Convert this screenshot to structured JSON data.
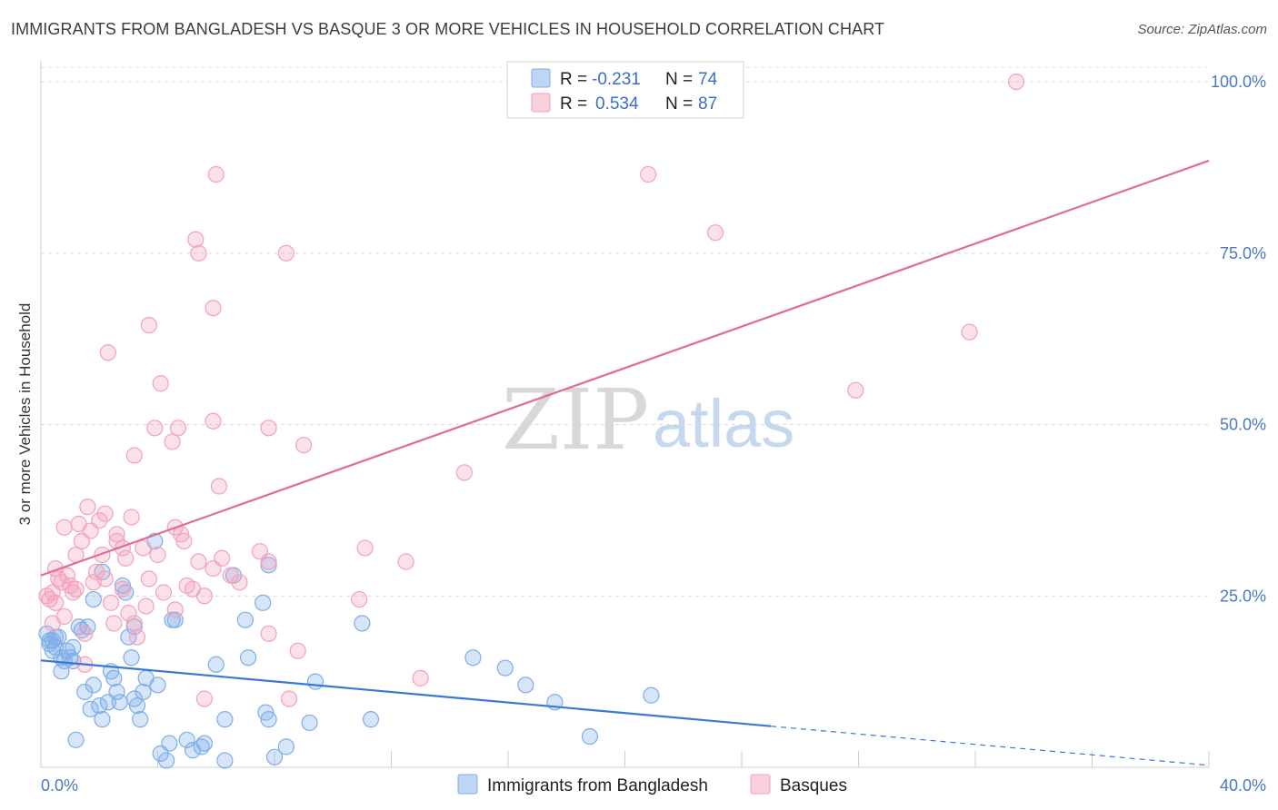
{
  "title": "IMMIGRANTS FROM BANGLADESH VS BASQUE 3 OR MORE VEHICLES IN HOUSEHOLD CORRELATION CHART",
  "source": "Source: ZipAtlas.com",
  "watermark": {
    "part1": "ZIP",
    "part2": "atlas"
  },
  "legend": {
    "r_label": "R =",
    "n_label": "N =",
    "rows": [
      {
        "r": "-0.231",
        "n": "74",
        "color": "#7eaee8"
      },
      {
        "r": "0.534",
        "n": "87",
        "color": "#f3a2bc"
      }
    ]
  },
  "bottom_legend": [
    {
      "label": "Immigrants from Bangladesh",
      "color": "#7eaee8"
    },
    {
      "label": "Basques",
      "color": "#f3a2bc"
    }
  ],
  "chart_data": {
    "type": "scatter",
    "title": "IMMIGRANTS FROM BANGLADESH VS BASQUE 3 OR MORE VEHICLES IN HOUSEHOLD CORRELATION CHART",
    "xlabel": "",
    "ylabel": "3 or more Vehicles in Household",
    "xlim": [
      0,
      40
    ],
    "ylim": [
      0,
      102
    ],
    "x_tick_labels": [
      "0.0%",
      "40.0%"
    ],
    "y_ticks": [
      25,
      50,
      75,
      100
    ],
    "y_tick_labels": [
      "25.0%",
      "50.0%",
      "75.0%",
      "100.0%"
    ],
    "grid": true,
    "legend_position": "top-center",
    "series": [
      {
        "name": "Immigrants from Bangladesh",
        "color": "#7eaee8",
        "line_color": "#3a78d4",
        "trend": {
          "x": [
            0,
            25
          ],
          "y": [
            15.6,
            6.0
          ]
        },
        "trend_extension": {
          "x": [
            25,
            40
          ],
          "y": [
            6.0,
            0.3
          ]
        },
        "points": [
          [
            0.2,
            19.5
          ],
          [
            0.3,
            18.0
          ],
          [
            0.4,
            18.5
          ],
          [
            0.5,
            17.5
          ],
          [
            0.6,
            19.0
          ],
          [
            0.4,
            17.0
          ],
          [
            0.7,
            16.0
          ],
          [
            0.8,
            15.5
          ],
          [
            0.9,
            17.0
          ],
          [
            1.0,
            16.0
          ],
          [
            0.7,
            14.0
          ],
          [
            1.1,
            15.5
          ],
          [
            1.3,
            20.5
          ],
          [
            1.4,
            20.0
          ],
          [
            1.6,
            20.5
          ],
          [
            1.8,
            24.5
          ],
          [
            2.1,
            28.5
          ],
          [
            2.8,
            26.5
          ],
          [
            2.9,
            25.5
          ],
          [
            3.0,
            19.0
          ],
          [
            3.2,
            20.5
          ],
          [
            3.9,
            33.0
          ],
          [
            4.5,
            21.5
          ],
          [
            4.6,
            21.5
          ],
          [
            6.6,
            28.0
          ],
          [
            7.0,
            21.5
          ],
          [
            7.6,
            24.0
          ],
          [
            7.8,
            29.5
          ],
          [
            1.5,
            11.0
          ],
          [
            1.8,
            12.0
          ],
          [
            2.4,
            14.0
          ],
          [
            2.6,
            11.0
          ],
          [
            3.1,
            16.0
          ],
          [
            3.5,
            11.0
          ],
          [
            3.6,
            13.0
          ],
          [
            4.0,
            12.0
          ],
          [
            2.0,
            9.0
          ],
          [
            2.3,
            9.5
          ],
          [
            2.7,
            9.5
          ],
          [
            3.2,
            10.0
          ],
          [
            1.2,
            4.0
          ],
          [
            2.1,
            7.0
          ],
          [
            3.4,
            7.0
          ],
          [
            4.4,
            3.5
          ],
          [
            5.0,
            4.0
          ],
          [
            5.6,
            3.5
          ],
          [
            6.3,
            7.0
          ],
          [
            7.7,
            8.0
          ],
          [
            7.8,
            7.0
          ],
          [
            9.2,
            6.5
          ],
          [
            11.3,
            7.0
          ],
          [
            9.4,
            12.5
          ],
          [
            11.0,
            21.0
          ],
          [
            6.0,
            15.0
          ],
          [
            7.1,
            16.0
          ],
          [
            14.8,
            16.0
          ],
          [
            15.9,
            14.5
          ],
          [
            16.6,
            12.0
          ],
          [
            17.6,
            9.5
          ],
          [
            18.8,
            4.5
          ],
          [
            20.9,
            10.5
          ],
          [
            5.2,
            2.5
          ],
          [
            5.5,
            3.0
          ],
          [
            6.3,
            1.0
          ],
          [
            8.0,
            1.5
          ],
          [
            8.4,
            3.0
          ],
          [
            4.1,
            2.0
          ],
          [
            4.3,
            1.0
          ],
          [
            0.3,
            18.5
          ],
          [
            0.5,
            19.0
          ],
          [
            1.1,
            17.5
          ],
          [
            2.5,
            13.0
          ],
          [
            3.3,
            9.0
          ],
          [
            1.7,
            8.5
          ]
        ]
      },
      {
        "name": "Basques",
        "color": "#f3a2bc",
        "line_color": "#e06b96",
        "trend": {
          "x": [
            0,
            40
          ],
          "y": [
            28.0,
            88.5
          ]
        },
        "points": [
          [
            0.2,
            25.0
          ],
          [
            0.3,
            24.5
          ],
          [
            0.4,
            25.5
          ],
          [
            0.5,
            24.0
          ],
          [
            0.6,
            27.5
          ],
          [
            0.7,
            27.0
          ],
          [
            0.8,
            22.0
          ],
          [
            0.9,
            28.0
          ],
          [
            1.0,
            26.5
          ],
          [
            1.1,
            25.5
          ],
          [
            1.2,
            26.0
          ],
          [
            1.3,
            35.5
          ],
          [
            1.5,
            19.5
          ],
          [
            1.6,
            38.0
          ],
          [
            1.7,
            34.5
          ],
          [
            1.8,
            27.0
          ],
          [
            2.0,
            36.0
          ],
          [
            2.1,
            31.0
          ],
          [
            2.2,
            37.0
          ],
          [
            2.4,
            24.0
          ],
          [
            2.5,
            21.0
          ],
          [
            2.6,
            34.0
          ],
          [
            2.8,
            32.0
          ],
          [
            2.9,
            30.5
          ],
          [
            3.1,
            36.5
          ],
          [
            3.2,
            21.0
          ],
          [
            3.3,
            19.0
          ],
          [
            3.6,
            23.5
          ],
          [
            4.0,
            31.0
          ],
          [
            4.2,
            25.5
          ],
          [
            4.6,
            23.0
          ],
          [
            4.8,
            34.0
          ],
          [
            4.9,
            33.0
          ],
          [
            5.2,
            26.0
          ],
          [
            5.4,
            30.0
          ],
          [
            5.6,
            25.0
          ],
          [
            5.9,
            29.0
          ],
          [
            6.1,
            41.0
          ],
          [
            6.5,
            28.0
          ],
          [
            6.8,
            27.0
          ],
          [
            7.8,
            30.0
          ],
          [
            7.8,
            19.5
          ],
          [
            8.8,
            17.0
          ],
          [
            9.0,
            47.0
          ],
          [
            10.9,
            24.5
          ],
          [
            11.1,
            32.0
          ],
          [
            12.5,
            30.0
          ],
          [
            13.0,
            13.0
          ],
          [
            14.5,
            43.0
          ],
          [
            3.2,
            45.5
          ],
          [
            3.9,
            49.5
          ],
          [
            4.5,
            47.5
          ],
          [
            4.7,
            49.5
          ],
          [
            5.9,
            50.5
          ],
          [
            7.8,
            49.5
          ],
          [
            4.1,
            56.0
          ],
          [
            3.7,
            64.5
          ],
          [
            2.3,
            60.5
          ],
          [
            5.3,
            77.0
          ],
          [
            5.4,
            75.0
          ],
          [
            5.9,
            67.0
          ],
          [
            6.0,
            86.5
          ],
          [
            8.4,
            75.0
          ],
          [
            20.8,
            86.5
          ],
          [
            23.1,
            78.0
          ],
          [
            27.9,
            55.0
          ],
          [
            31.8,
            63.5
          ],
          [
            33.4,
            100.0
          ],
          [
            5.6,
            10.0
          ],
          [
            8.5,
            10.0
          ],
          [
            1.5,
            15.0
          ],
          [
            0.5,
            29.0
          ],
          [
            1.2,
            31.0
          ],
          [
            2.6,
            33.0
          ],
          [
            3.5,
            32.0
          ],
          [
            4.6,
            35.0
          ],
          [
            0.4,
            21.0
          ],
          [
            1.9,
            28.5
          ],
          [
            2.8,
            26.0
          ],
          [
            3.0,
            22.5
          ],
          [
            5.0,
            26.5
          ],
          [
            6.2,
            30.5
          ],
          [
            7.5,
            31.5
          ],
          [
            2.2,
            27.5
          ],
          [
            1.4,
            33.0
          ],
          [
            0.8,
            35.0
          ],
          [
            3.7,
            27.5
          ]
        ]
      }
    ]
  }
}
